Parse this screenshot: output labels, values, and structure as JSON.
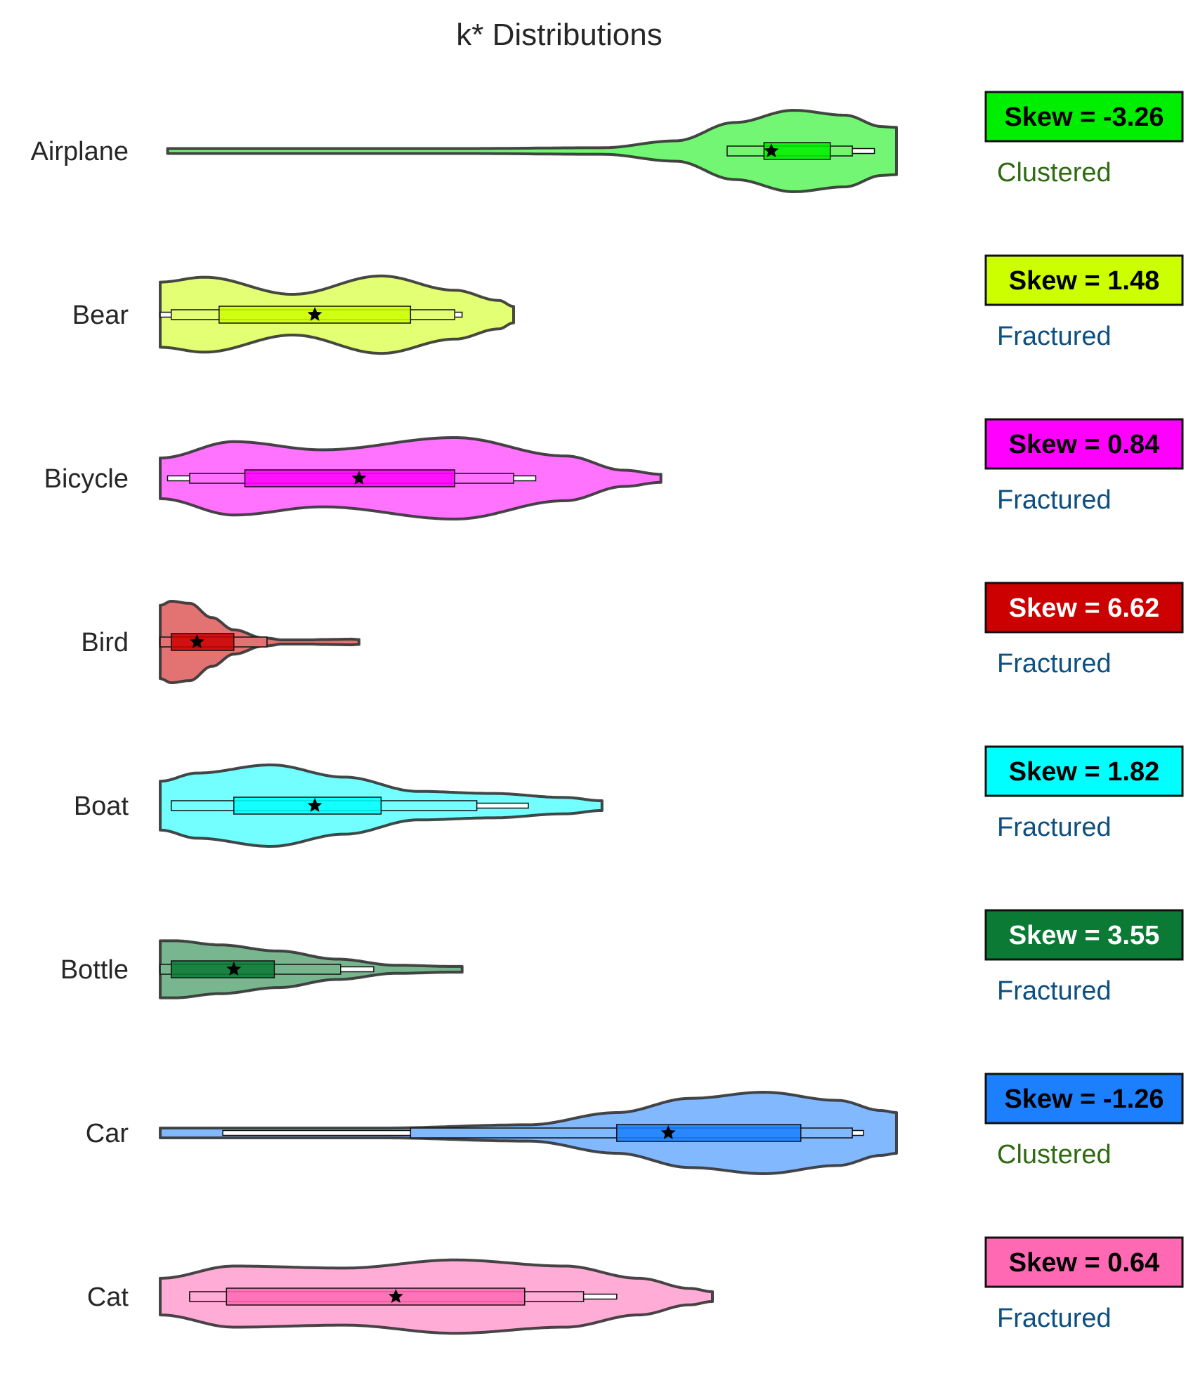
{
  "chart_data": {
    "type": "violin",
    "title": "k* Distributions",
    "xlabel": "",
    "ylabel": "",
    "grid": false,
    "legend": "none",
    "x_range": [
      0,
      1
    ],
    "categories": [
      "Airplane",
      "Bear",
      "Bicycle",
      "Bird",
      "Boat",
      "Bottle",
      "Car",
      "Cat"
    ],
    "series": [
      {
        "category": "Airplane",
        "color": "#00ee00",
        "skew_label": "Skew = -3.26",
        "skew_text_color": "#000000",
        "shape_label": "Clustered",
        "shape_color": "#2d6a10",
        "min": 0.01,
        "max": 1.0,
        "p10": 0.77,
        "q1": 0.82,
        "median": 0.85,
        "q3": 0.91,
        "p90": 0.94,
        "mean": 0.83,
        "wh_lo": 0.77,
        "wh_hi": 0.97,
        "density": [
          [
            0.01,
            0.06
          ],
          [
            0.4,
            0.06
          ],
          [
            0.6,
            0.08
          ],
          [
            0.7,
            0.25
          ],
          [
            0.78,
            0.7
          ],
          [
            0.86,
            1.0
          ],
          [
            0.93,
            0.88
          ],
          [
            0.98,
            0.6
          ],
          [
            1.0,
            0.58
          ]
        ]
      },
      {
        "category": "Bear",
        "color": "#ccff00",
        "skew_label": "Skew = 1.48",
        "skew_text_color": "#000000",
        "shape_label": "Fractured",
        "shape_color": "#0c4f80",
        "min": 0.0,
        "max": 0.48,
        "p10": 0.015,
        "q1": 0.08,
        "median": 0.21,
        "q3": 0.34,
        "p90": 0.4,
        "mean": 0.21,
        "wh_lo": 0.0,
        "wh_hi": 0.41,
        "density": [
          [
            0.0,
            0.8
          ],
          [
            0.06,
            0.92
          ],
          [
            0.18,
            0.5
          ],
          [
            0.3,
            0.95
          ],
          [
            0.4,
            0.6
          ],
          [
            0.46,
            0.35
          ],
          [
            0.48,
            0.2
          ]
        ]
      },
      {
        "category": "Bicycle",
        "color": "#ff00ff",
        "skew_label": "Skew = 0.84",
        "skew_text_color": "#000000",
        "shape_label": "Fractured",
        "shape_color": "#0c4f80",
        "min": 0.0,
        "max": 0.68,
        "p10": 0.04,
        "q1": 0.115,
        "median": 0.27,
        "q3": 0.4,
        "p90": 0.48,
        "mean": 0.27,
        "wh_lo": 0.01,
        "wh_hi": 0.51,
        "density": [
          [
            0.0,
            0.5
          ],
          [
            0.1,
            0.9
          ],
          [
            0.22,
            0.7
          ],
          [
            0.4,
            1.0
          ],
          [
            0.55,
            0.55
          ],
          [
            0.63,
            0.2
          ],
          [
            0.68,
            0.1
          ]
        ]
      },
      {
        "category": "Bird",
        "color": "#cc0000",
        "skew_label": "Skew = 6.62",
        "skew_text_color": "#ffffff",
        "shape_label": "Fractured",
        "shape_color": "#0c4f80",
        "min": 0.0,
        "max": 0.27,
        "p10": 0.0,
        "q1": 0.015,
        "median": 0.05,
        "q3": 0.1,
        "p90": 0.145,
        "mean": 0.05,
        "wh_lo": 0.0,
        "wh_hi": 0.145,
        "density": [
          [
            0.0,
            0.9
          ],
          [
            0.015,
            1.0
          ],
          [
            0.04,
            0.95
          ],
          [
            0.07,
            0.6
          ],
          [
            0.1,
            0.3
          ],
          [
            0.14,
            0.1
          ],
          [
            0.18,
            0.02
          ],
          [
            0.22,
            0.06
          ],
          [
            0.26,
            0.07
          ],
          [
            0.27,
            0.06
          ]
        ]
      },
      {
        "category": "Boat",
        "color": "#00ffff",
        "skew_label": "Skew = 1.82",
        "skew_text_color": "#000000",
        "shape_label": "Fractured",
        "shape_color": "#0c4f80",
        "min": 0.0,
        "max": 0.6,
        "p10": 0.015,
        "q1": 0.1,
        "median": 0.21,
        "q3": 0.3,
        "p90": 0.43,
        "mean": 0.21,
        "wh_lo": 0.015,
        "wh_hi": 0.5,
        "density": [
          [
            0.0,
            0.6
          ],
          [
            0.05,
            0.8
          ],
          [
            0.15,
            1.0
          ],
          [
            0.25,
            0.7
          ],
          [
            0.35,
            0.35
          ],
          [
            0.45,
            0.3
          ],
          [
            0.55,
            0.2
          ],
          [
            0.6,
            0.12
          ]
        ]
      },
      {
        "category": "Bottle",
        "color": "#0a7a35",
        "skew_label": "Skew = 3.55",
        "skew_text_color": "#ffffff",
        "shape_label": "Fractured",
        "shape_color": "#0c4f80",
        "min": 0.0,
        "max": 0.41,
        "p10": 0.0,
        "q1": 0.015,
        "median": 0.1,
        "q3": 0.155,
        "p90": 0.245,
        "mean": 0.1,
        "wh_lo": 0.0,
        "wh_hi": 0.29,
        "density": [
          [
            0.0,
            0.7
          ],
          [
            0.02,
            0.7
          ],
          [
            0.08,
            0.6
          ],
          [
            0.16,
            0.45
          ],
          [
            0.24,
            0.25
          ],
          [
            0.32,
            0.1
          ],
          [
            0.4,
            0.07
          ],
          [
            0.41,
            0.07
          ]
        ]
      },
      {
        "category": "Car",
        "color": "#1b7ffe",
        "skew_label": "Skew = -1.26",
        "skew_text_color": "#000000",
        "shape_label": "Clustered",
        "shape_color": "#2d6a10",
        "min": 0.0,
        "max": 1.0,
        "p10": 0.34,
        "q1": 0.62,
        "median": 0.69,
        "q3": 0.87,
        "p90": 0.94,
        "mean": 0.69,
        "wh_lo": 0.085,
        "wh_hi": 0.955,
        "density": [
          [
            0.0,
            0.12
          ],
          [
            0.3,
            0.12
          ],
          [
            0.5,
            0.2
          ],
          [
            0.62,
            0.5
          ],
          [
            0.72,
            0.85
          ],
          [
            0.82,
            1.0
          ],
          [
            0.92,
            0.8
          ],
          [
            0.98,
            0.55
          ],
          [
            1.0,
            0.5
          ]
        ]
      },
      {
        "category": "Cat",
        "color": "#ff69b4",
        "skew_label": "Skew = 0.64",
        "skew_text_color": "#000000",
        "shape_label": "Fractured",
        "shape_color": "#0c4f80",
        "min": 0.0,
        "max": 0.75,
        "p10": 0.04,
        "q1": 0.09,
        "median": 0.32,
        "q3": 0.495,
        "p90": 0.575,
        "mean": 0.32,
        "wh_lo": 0.04,
        "wh_hi": 0.62,
        "density": [
          [
            0.0,
            0.45
          ],
          [
            0.1,
            0.75
          ],
          [
            0.25,
            0.7
          ],
          [
            0.4,
            0.9
          ],
          [
            0.55,
            0.75
          ],
          [
            0.65,
            0.45
          ],
          [
            0.72,
            0.2
          ],
          [
            0.75,
            0.12
          ]
        ]
      }
    ]
  }
}
